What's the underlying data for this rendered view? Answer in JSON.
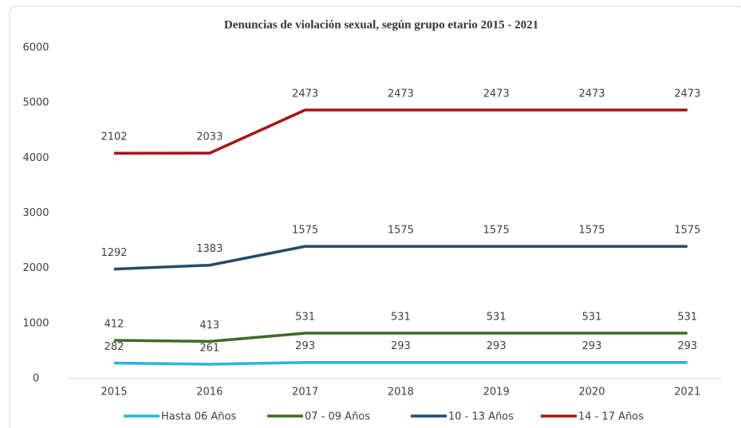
{
  "chart_data": {
    "type": "line",
    "stacked": true,
    "title": "Denuncias de violación sexual, según grupo etario 2015 - 2021",
    "categories": [
      "2015",
      "2016",
      "2017",
      "2018",
      "2019",
      "2020",
      "2021"
    ],
    "series": [
      {
        "name": "Hasta 06 Años",
        "color": "#29b3df",
        "values": [
          282,
          261,
          293,
          293,
          293,
          293,
          293
        ]
      },
      {
        "name": "07 - 09 Años",
        "color": "#3e6a2a",
        "values": [
          412,
          413,
          531,
          531,
          531,
          531,
          531
        ]
      },
      {
        "name": "10 - 13 Años",
        "color": "#234b6e",
        "values": [
          1292,
          1383,
          1575,
          1575,
          1575,
          1575,
          1575
        ]
      },
      {
        "name": "14 - 17 Años",
        "color": "#a61416",
        "values": [
          2102,
          2033,
          2473,
          2473,
          2473,
          2473,
          2473
        ]
      }
    ],
    "ylim": [
      0,
      6000
    ],
    "yticks": [
      0,
      1000,
      2000,
      3000,
      4000,
      5000,
      6000
    ],
    "grid": false,
    "legend": "bottom"
  }
}
